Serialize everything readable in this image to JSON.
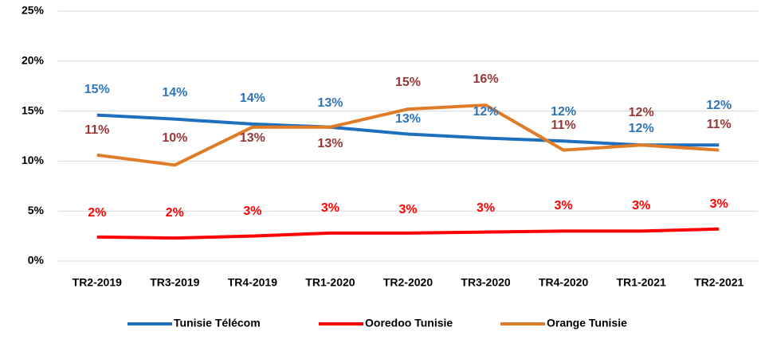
{
  "chart_data": {
    "type": "line",
    "categories": [
      "TR2-2019",
      "TR3-2019",
      "TR4-2019",
      "TR1-2020",
      "TR2-2020",
      "TR3-2020",
      "TR4-2020",
      "TR1-2021",
      "TR2-2021"
    ],
    "series": [
      {
        "name": "Tunisie Télécom",
        "color": "#1f6fbf",
        "label_color": "#2e75b6",
        "values": [
          14.6,
          14.2,
          13.7,
          13.4,
          12.7,
          12.3,
          12.0,
          11.6,
          11.6
        ],
        "value_labels": [
          "15%",
          "14%",
          "14%",
          "13%",
          "13%",
          "12%",
          "12%",
          "12%",
          "12%"
        ]
      },
      {
        "name": "Ooredoo Tunisie",
        "color": "#ff0000",
        "label_color": "#ff0000",
        "values": [
          2.4,
          2.3,
          2.5,
          2.8,
          2.8,
          2.9,
          3.0,
          3.0,
          3.2
        ],
        "value_labels": [
          "2%",
          "2%",
          "3%",
          "3%",
          "3%",
          "3%",
          "3%",
          "3%",
          "3%"
        ]
      },
      {
        "name": "Orange Tunisie",
        "color": "#e07b28",
        "label_color": "#953735",
        "values": [
          10.6,
          9.6,
          13.4,
          13.4,
          15.2,
          15.6,
          11.1,
          11.6,
          11.1
        ],
        "value_labels": [
          "11%",
          "10%",
          "13%",
          "13%",
          "15%",
          "16%",
          "11%",
          "12%",
          "11%"
        ]
      }
    ],
    "ylim": [
      0,
      25
    ],
    "yticks": [
      {
        "value": 0,
        "label": "0%"
      },
      {
        "value": 5,
        "label": "5%"
      },
      {
        "value": 10,
        "label": "10%"
      },
      {
        "value": 15,
        "label": "15%"
      },
      {
        "value": 20,
        "label": "20%"
      },
      {
        "value": 25,
        "label": "25%"
      }
    ],
    "grid": true,
    "legend": "bottom"
  }
}
